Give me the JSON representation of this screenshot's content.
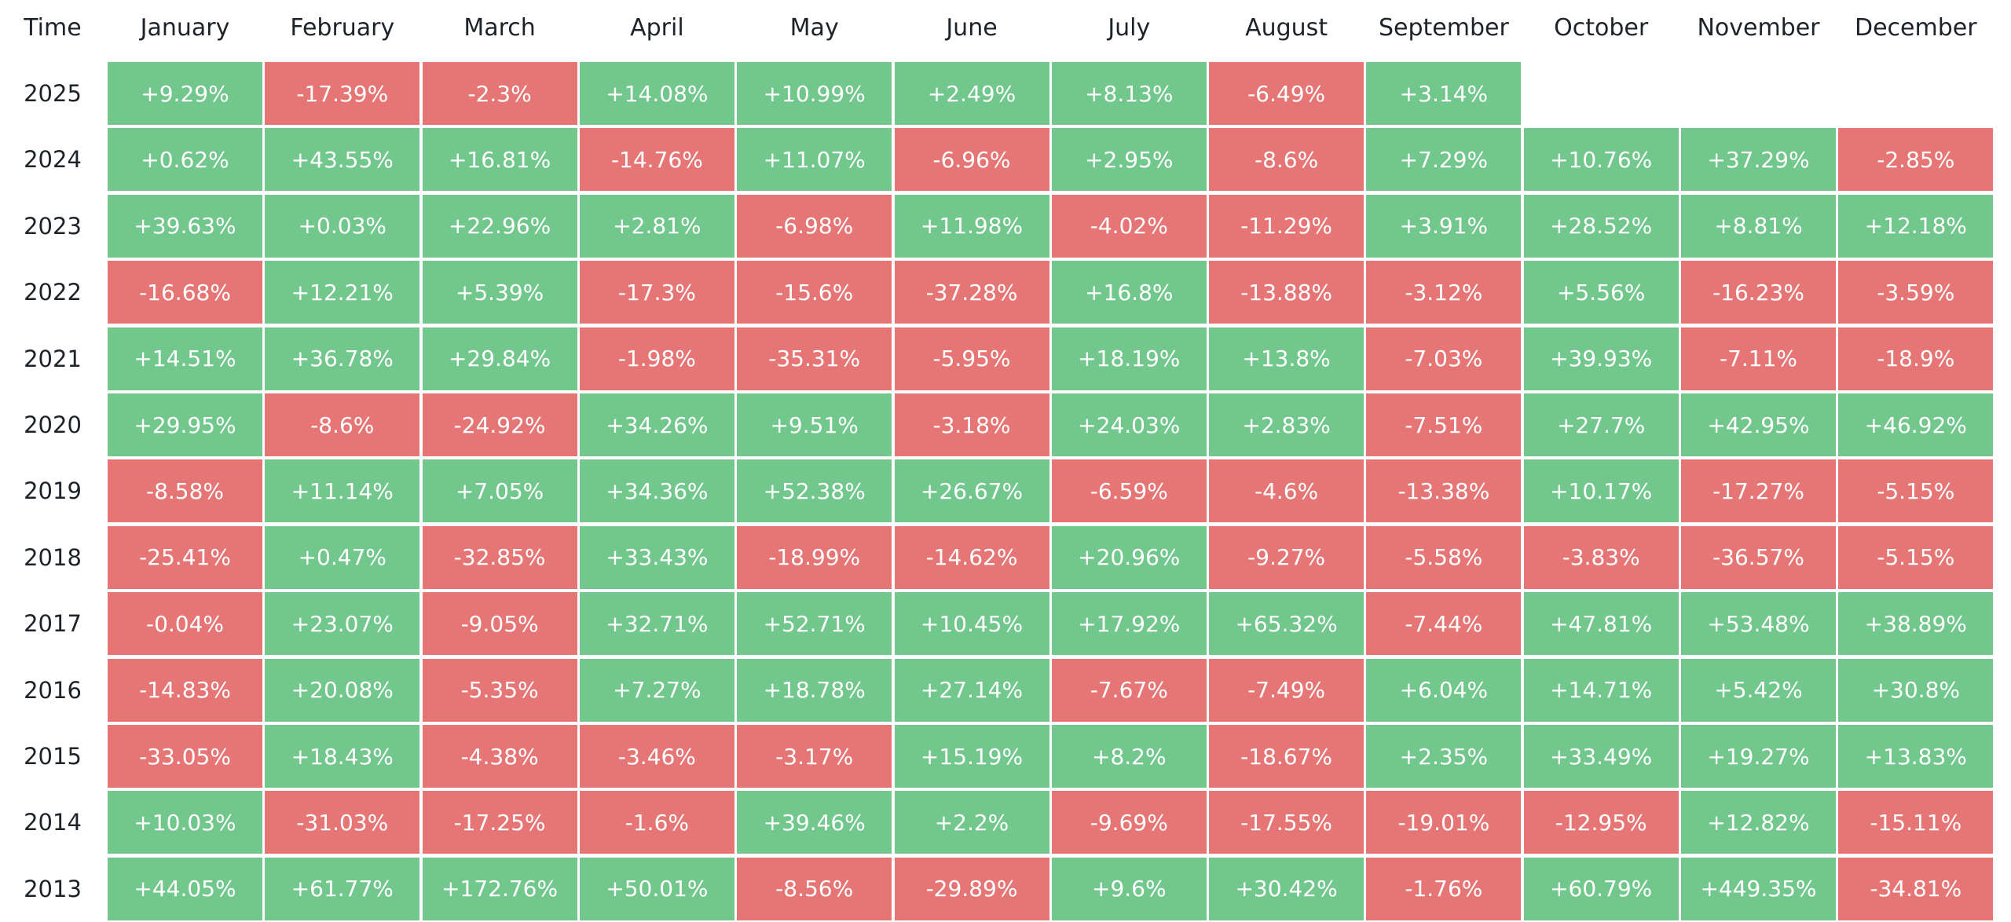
{
  "chart_data": {
    "type": "heatmap",
    "corner_label": "Time",
    "columns": [
      "January",
      "February",
      "March",
      "April",
      "May",
      "June",
      "July",
      "August",
      "September",
      "October",
      "November",
      "December"
    ],
    "rows": [
      {
        "year": "2025",
        "values": [
          "+9.29%",
          "-17.39%",
          "-2.3%",
          "+14.08%",
          "+10.99%",
          "+2.49%",
          "+8.13%",
          "-6.49%",
          "+3.14%",
          null,
          null,
          null
        ]
      },
      {
        "year": "2024",
        "values": [
          "+0.62%",
          "+43.55%",
          "+16.81%",
          "-14.76%",
          "+11.07%",
          "-6.96%",
          "+2.95%",
          "-8.6%",
          "+7.29%",
          "+10.76%",
          "+37.29%",
          "-2.85%"
        ]
      },
      {
        "year": "2023",
        "values": [
          "+39.63%",
          "+0.03%",
          "+22.96%",
          "+2.81%",
          "-6.98%",
          "+11.98%",
          "-4.02%",
          "-11.29%",
          "+3.91%",
          "+28.52%",
          "+8.81%",
          "+12.18%"
        ]
      },
      {
        "year": "2022",
        "values": [
          "-16.68%",
          "+12.21%",
          "+5.39%",
          "-17.3%",
          "-15.6%",
          "-37.28%",
          "+16.8%",
          "-13.88%",
          "-3.12%",
          "+5.56%",
          "-16.23%",
          "-3.59%"
        ]
      },
      {
        "year": "2021",
        "values": [
          "+14.51%",
          "+36.78%",
          "+29.84%",
          "-1.98%",
          "-35.31%",
          "-5.95%",
          "+18.19%",
          "+13.8%",
          "-7.03%",
          "+39.93%",
          "-7.11%",
          "-18.9%"
        ]
      },
      {
        "year": "2020",
        "values": [
          "+29.95%",
          "-8.6%",
          "-24.92%",
          "+34.26%",
          "+9.51%",
          "-3.18%",
          "+24.03%",
          "+2.83%",
          "-7.51%",
          "+27.7%",
          "+42.95%",
          "+46.92%"
        ]
      },
      {
        "year": "2019",
        "values": [
          "-8.58%",
          "+11.14%",
          "+7.05%",
          "+34.36%",
          "+52.38%",
          "+26.67%",
          "-6.59%",
          "-4.6%",
          "-13.38%",
          "+10.17%",
          "-17.27%",
          "-5.15%"
        ]
      },
      {
        "year": "2018",
        "values": [
          "-25.41%",
          "+0.47%",
          "-32.85%",
          "+33.43%",
          "-18.99%",
          "-14.62%",
          "+20.96%",
          "-9.27%",
          "-5.58%",
          "-3.83%",
          "-36.57%",
          "-5.15%"
        ]
      },
      {
        "year": "2017",
        "values": [
          "-0.04%",
          "+23.07%",
          "-9.05%",
          "+32.71%",
          "+52.71%",
          "+10.45%",
          "+17.92%",
          "+65.32%",
          "-7.44%",
          "+47.81%",
          "+53.48%",
          "+38.89%"
        ]
      },
      {
        "year": "2016",
        "values": [
          "-14.83%",
          "+20.08%",
          "-5.35%",
          "+7.27%",
          "+18.78%",
          "+27.14%",
          "-7.67%",
          "-7.49%",
          "+6.04%",
          "+14.71%",
          "+5.42%",
          "+30.8%"
        ]
      },
      {
        "year": "2015",
        "values": [
          "-33.05%",
          "+18.43%",
          "-4.38%",
          "-3.46%",
          "-3.17%",
          "+15.19%",
          "+8.2%",
          "-18.67%",
          "+2.35%",
          "+33.49%",
          "+19.27%",
          "+13.83%"
        ]
      },
      {
        "year": "2014",
        "values": [
          "+10.03%",
          "-31.03%",
          "-17.25%",
          "-1.6%",
          "+39.46%",
          "+2.2%",
          "-9.69%",
          "-17.55%",
          "-19.01%",
          "-12.95%",
          "+12.82%",
          "-15.11%"
        ]
      },
      {
        "year": "2013",
        "values": [
          "+44.05%",
          "+61.77%",
          "+172.76%",
          "+50.01%",
          "-8.56%",
          "-29.89%",
          "+9.6%",
          "+30.42%",
          "-1.76%",
          "+60.79%",
          "+449.35%",
          "-34.81%"
        ]
      }
    ],
    "colors": {
      "positive": "#72c78d",
      "negative": "#e67676",
      "cell_text": "#ffffff",
      "header_text": "#1e2329"
    }
  }
}
